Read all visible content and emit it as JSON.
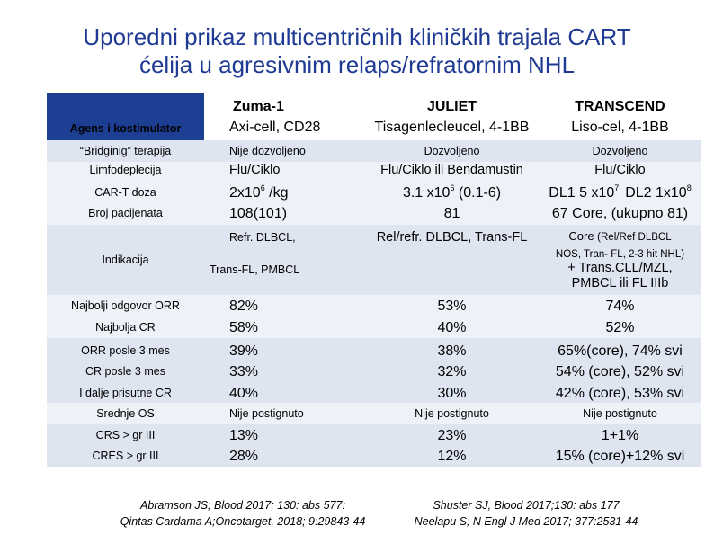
{
  "title": {
    "line1": "Uporedni prikaz multicentričnih kliničkih trajala CART",
    "line2": "ćelija u agresivnim relaps/refratornim NHL"
  },
  "colors": {
    "title": "#1f3a93",
    "header_band": "#1c3f94",
    "row_light": "#dfe4f1",
    "row_lighter": "#eef1f8"
  },
  "header": {
    "label": "Agens i kostimulator",
    "zuma": {
      "name": "Zuma-1",
      "agent": "Axi-cell, CD28"
    },
    "juliet": {
      "name": "JULIET",
      "agent": "Tisagenlecleucel, 4-1BB"
    },
    "transcend": {
      "name": "TRANSCEND",
      "agent": "Liso-cel, 4-1BB"
    }
  },
  "rows": {
    "bridging": {
      "label": "“Bridginig” terapija",
      "zuma": "Nije dozvoljeno",
      "juliet": "Dozvoljeno",
      "transcend": "Dozvoljeno"
    },
    "limfo": {
      "label": "Limfodeplecija",
      "zuma": "Flu/Ciklo",
      "juliet": "Flu/Ciklo ili Bendamustin",
      "transcend": "Flu/Ciklo"
    },
    "cart_doza": {
      "label": "CAR-T doza",
      "zuma_base": "2x10",
      "zuma_exp": "6",
      "zuma_unit": " /kg",
      "juliet_base": "3.1 x10",
      "juliet_exp": "6",
      "juliet_tail": " (0.1-6)",
      "transcend_a": "DL1 5 x10",
      "transcend_a_exp": "7,",
      "transcend_b": " DL2 1x10",
      "transcend_b_exp": "8"
    },
    "broj": {
      "label": "Broj pacijenata",
      "zuma": "108(101)",
      "juliet": "81",
      "transcend": "67 Core,  (ukupno 81)"
    },
    "indikacija": {
      "label": "Indikacija",
      "zuma1": "Refr. DLBCL,",
      "zuma2": "Trans-FL, PMBCL",
      "juliet": "Rel/refr. DLBCL, Trans-FL",
      "transcend1_a": "Core ",
      "transcend1_b": "(Rel/Ref DLBCL",
      "transcend2": "NOS, Tran- FL, 2-3 hit NHL)",
      "transcend3": "+ Trans.CLL/MZL,",
      "transcend4": "PMBCL ili FL IIIb"
    },
    "orr": {
      "label": "Najbolji odgovor ORR",
      "zuma": "82%",
      "juliet": "53%",
      "transcend": "74%"
    },
    "cr": {
      "label": "Najbolja CR",
      "zuma": "58%",
      "juliet": "40%",
      "transcend": "52%"
    },
    "orr3": {
      "label": "ORR posle 3 mes",
      "zuma": "39%",
      "juliet": "38%",
      "transcend": "65%(core), 74% svi"
    },
    "cr3": {
      "label": "CR posle 3 mes",
      "zuma": "33%",
      "juliet": "32%",
      "transcend": "54% (core), 52% svi"
    },
    "cr_persist": {
      "label": "I dalje prisutne  CR",
      "zuma": "40%",
      "juliet": "30%",
      "transcend": "42% (core), 53% svi"
    },
    "os": {
      "label": "Srednje OS",
      "zuma": "Nije postignuto",
      "juliet": "Nije postignuto",
      "transcend": "Nije postignuto"
    },
    "crs": {
      "label": "CRS > gr III",
      "zuma": "13%",
      "juliet": "23%",
      "transcend": "1+1%"
    },
    "cres": {
      "label": "CRES > gr III",
      "zuma": "28%",
      "juliet": "12%",
      "transcend": "15% (core)+12% svi"
    }
  },
  "refs": {
    "left1": "Abramson JS; Blood 2017; 130: abs 577:",
    "left2": "Qintas Cardama A;Oncotarget. 2018; 9:29843-44",
    "right1": "Shuster SJ, Blood 2017;130: abs 177",
    "right2": "Neelapu S; N Engl J Med 2017; 377:2531-44"
  }
}
